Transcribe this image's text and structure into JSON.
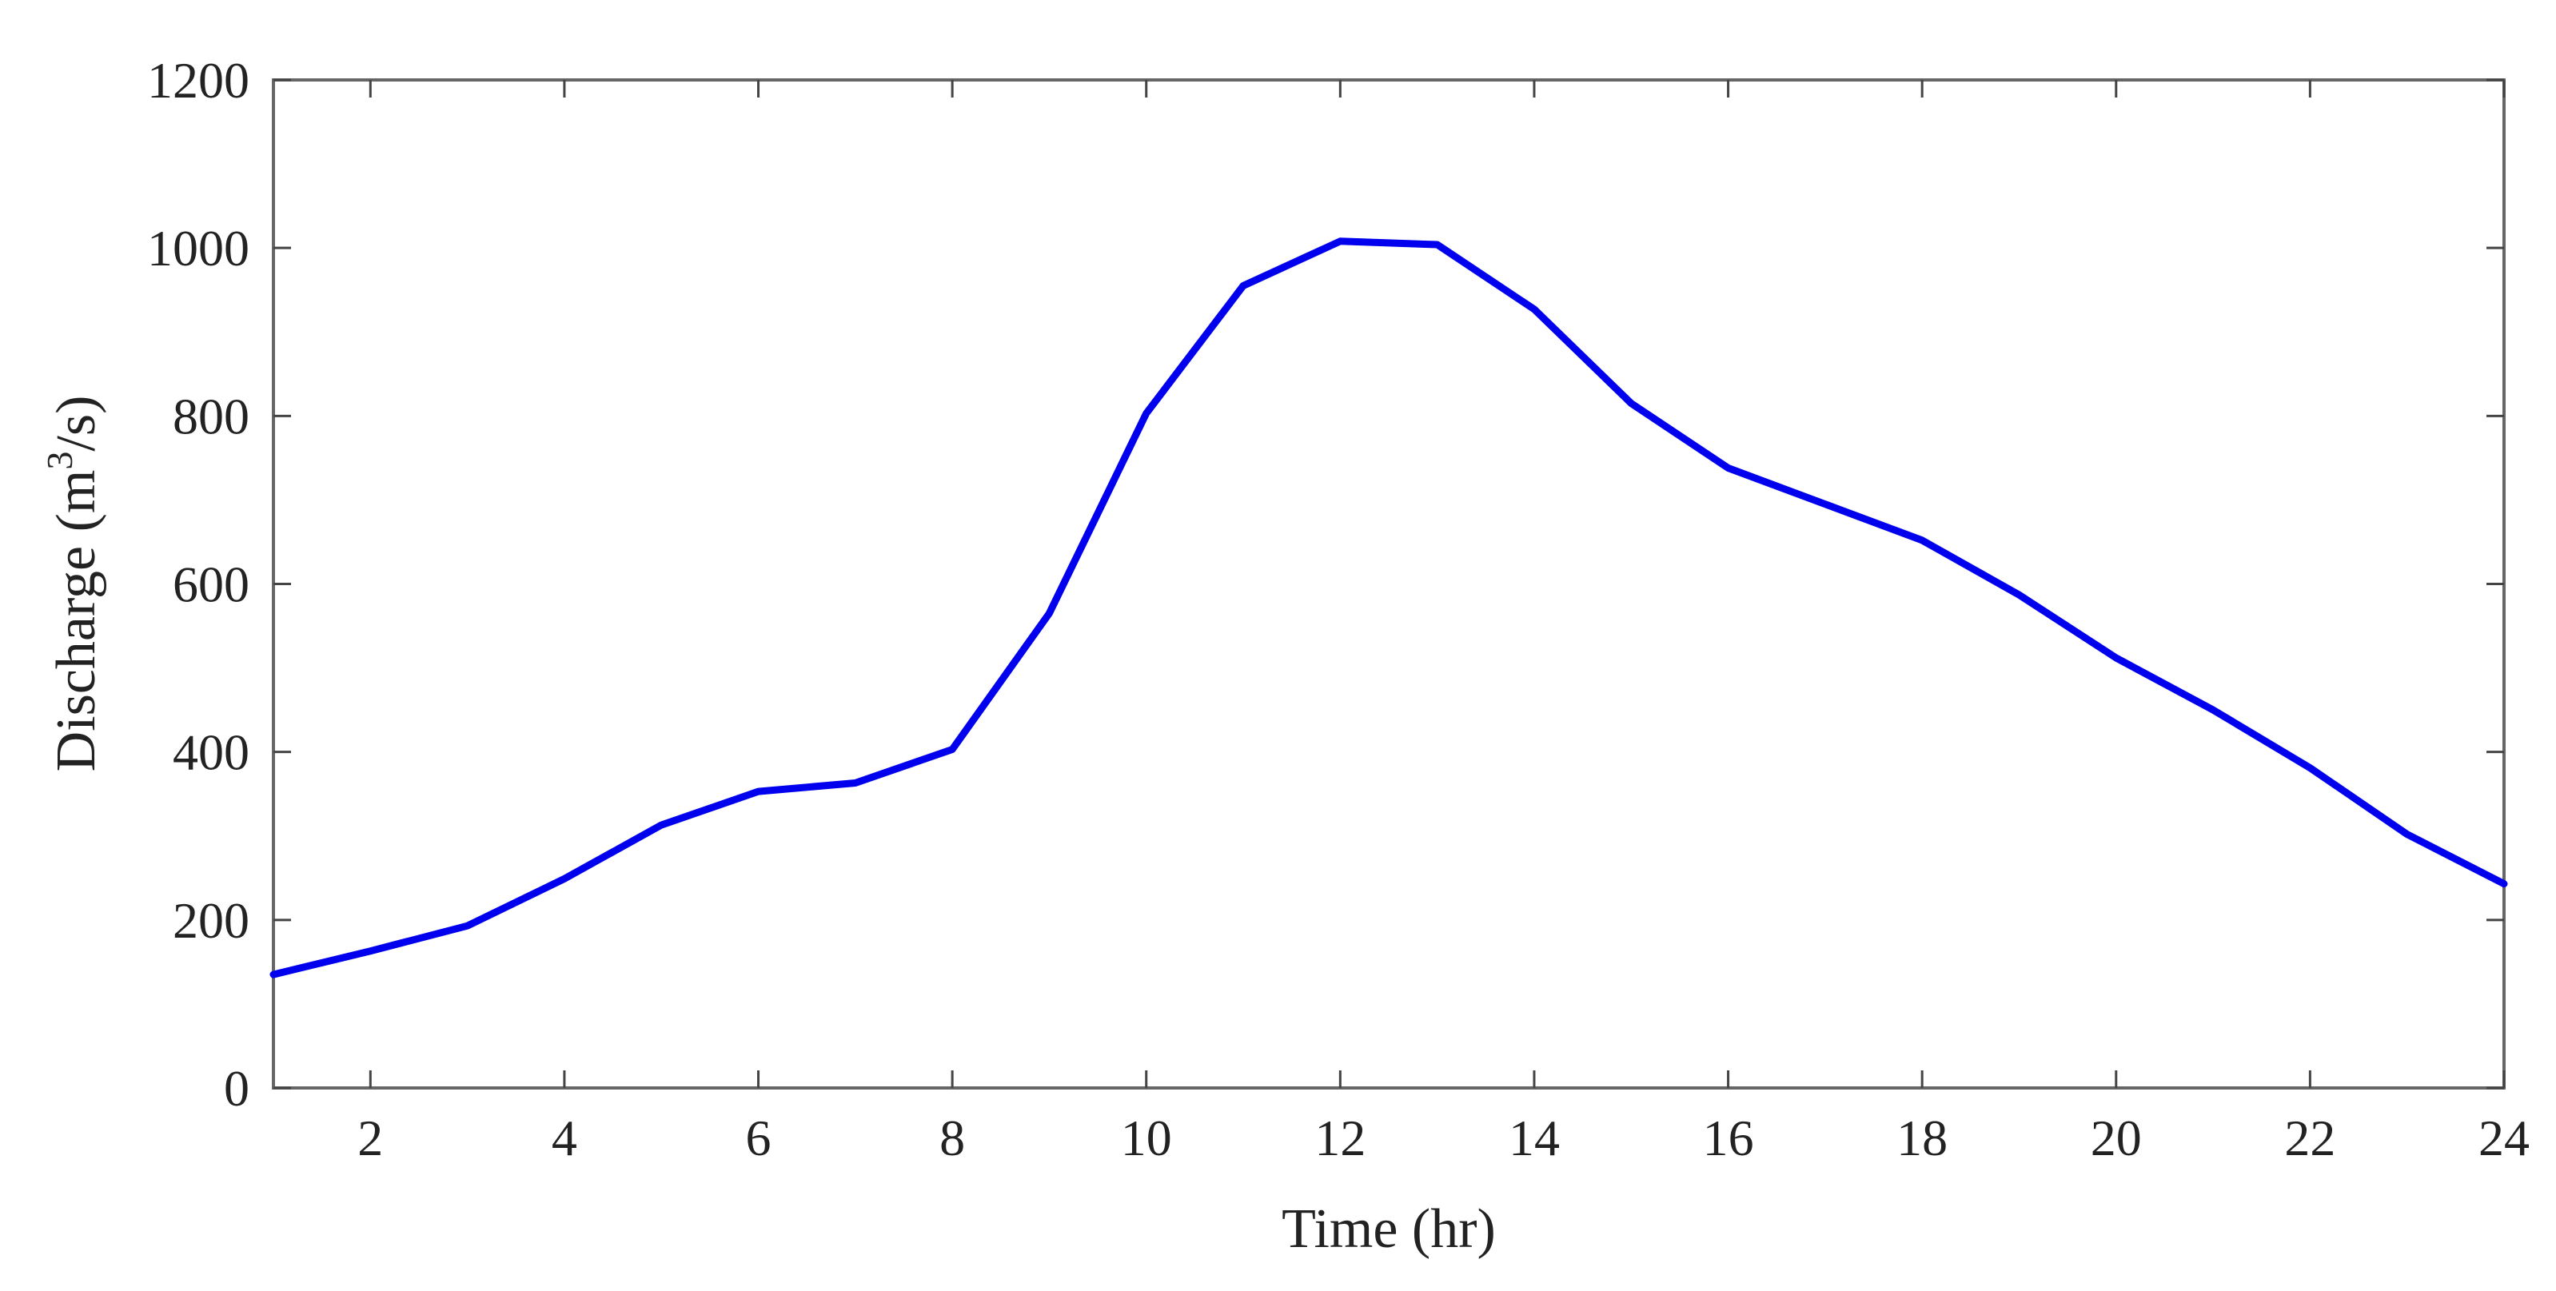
{
  "chart_data": {
    "type": "line",
    "title": "",
    "xlabel": "Time (hr)",
    "ylabel": {
      "prefix": "Discharge (m",
      "superscript": "3",
      "suffix": "/s)"
    },
    "xlim": [
      1,
      24
    ],
    "ylim": [
      0,
      1200
    ],
    "x_ticks": [
      "2",
      "4",
      "6",
      "8",
      "10",
      "12",
      "14",
      "16",
      "18",
      "20",
      "22",
      "24"
    ],
    "y_ticks": [
      "0",
      "200",
      "400",
      "600",
      "800",
      "1000",
      "1200"
    ],
    "grid": false,
    "legend": "none",
    "series": [
      {
        "color": "#0000ee",
        "x": [
          1,
          2,
          3,
          4,
          5,
          6,
          7,
          8,
          9,
          10,
          11,
          12,
          13,
          14,
          15,
          16,
          17,
          18,
          19,
          20,
          21,
          22,
          23,
          24
        ],
        "y": [
          135,
          163,
          193,
          249,
          313,
          353,
          363,
          403,
          565,
          803,
          955,
          1008,
          1004,
          927,
          815,
          738,
          695,
          652,
          587,
          512,
          450,
          381,
          302,
          243
        ]
      }
    ]
  }
}
